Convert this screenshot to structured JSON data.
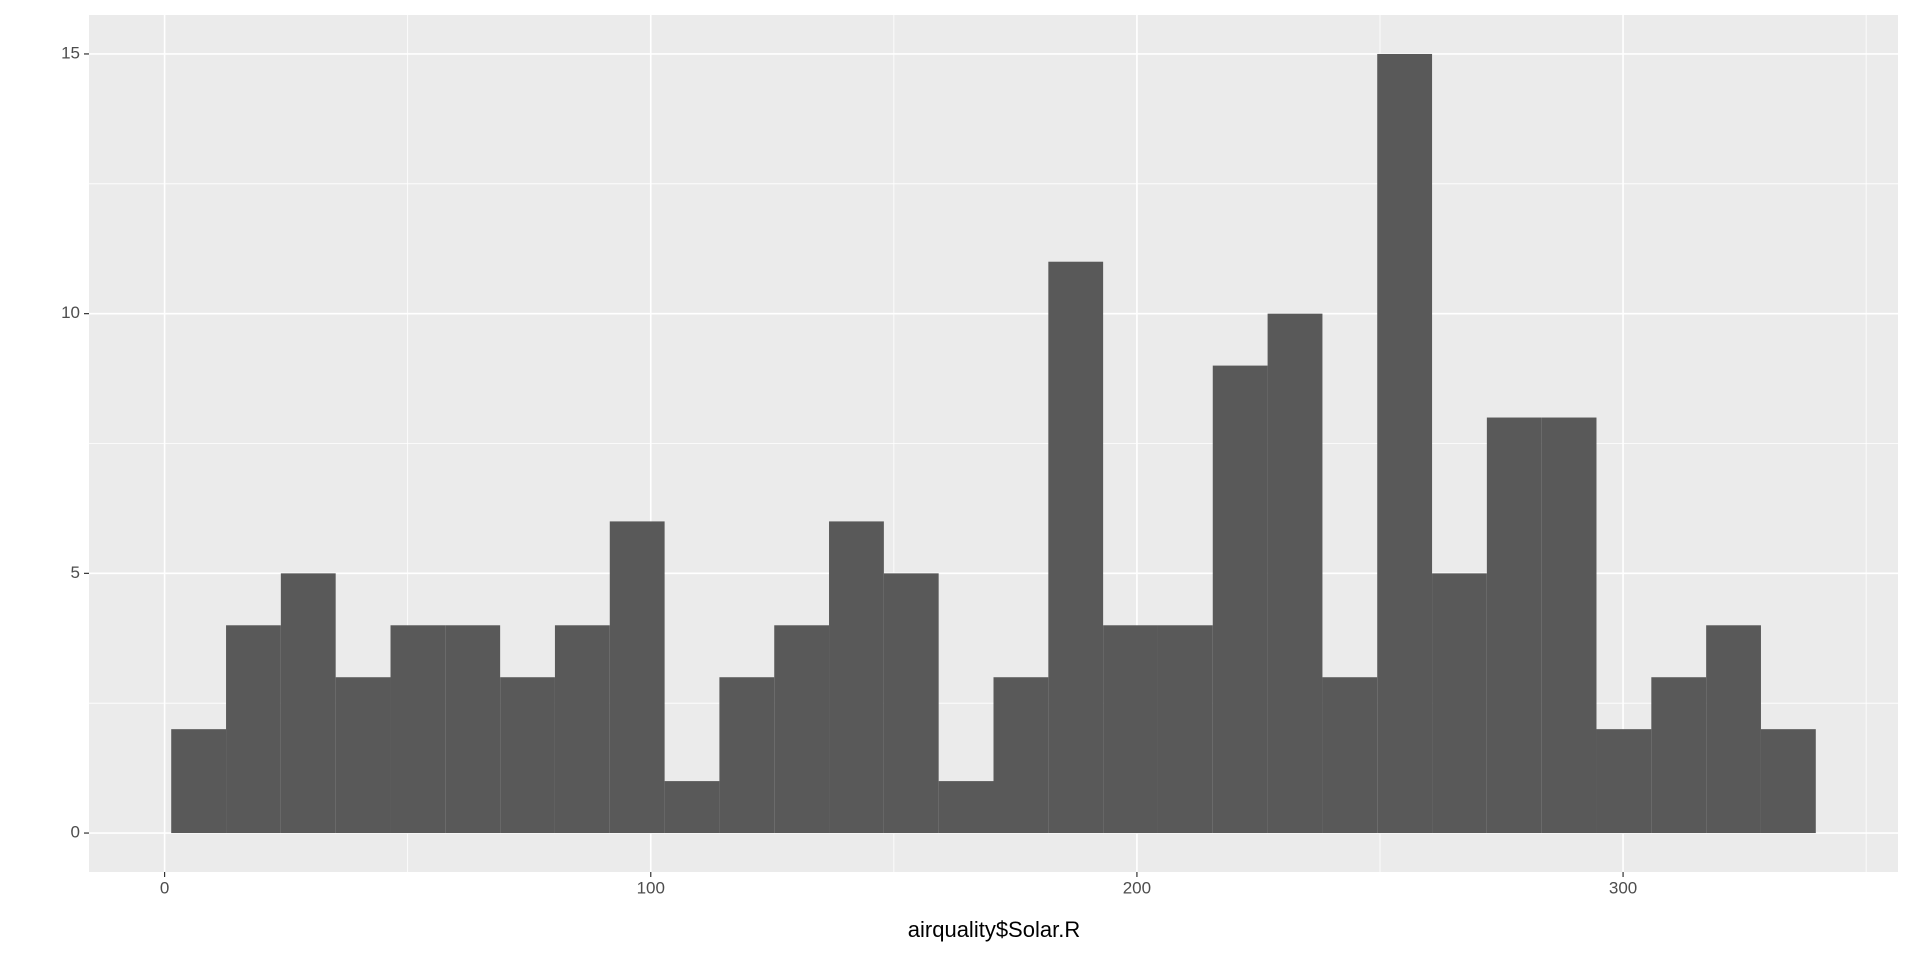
{
  "chart_data": {
    "type": "histogram",
    "x_label": "airquality$Solar.R",
    "bins": [
      1.36,
      12.64,
      23.91,
      35.19,
      46.47,
      57.74,
      69.02,
      80.29,
      91.57,
      102.85,
      114.12,
      125.4,
      136.67,
      147.95,
      159.22,
      170.5,
      181.78,
      193.05,
      204.33,
      215.6,
      226.88,
      238.16,
      249.43,
      260.71,
      271.98,
      283.26,
      294.53,
      305.81,
      317.09,
      328.36,
      339.64
    ],
    "values": [
      2,
      4,
      5,
      3,
      4,
      4,
      3,
      4,
      6,
      1,
      3,
      4,
      6,
      5,
      1,
      3,
      11,
      4,
      4,
      9,
      10,
      3,
      15,
      5,
      8,
      8,
      2,
      3,
      4,
      2
    ],
    "color": "#595959",
    "xlim": [
      -15.55,
      356.55
    ],
    "xticks": [
      0,
      100,
      200,
      300
    ],
    "x_minor_ticks": [
      50,
      150,
      250,
      350
    ],
    "ylim": [
      -0.75,
      15.75
    ],
    "yticks": [
      0,
      5,
      10,
      15
    ],
    "y_minor_ticks": [
      2.5,
      7.5,
      12.5
    ],
    "grid": true,
    "panel_color": "#ebebeb"
  }
}
